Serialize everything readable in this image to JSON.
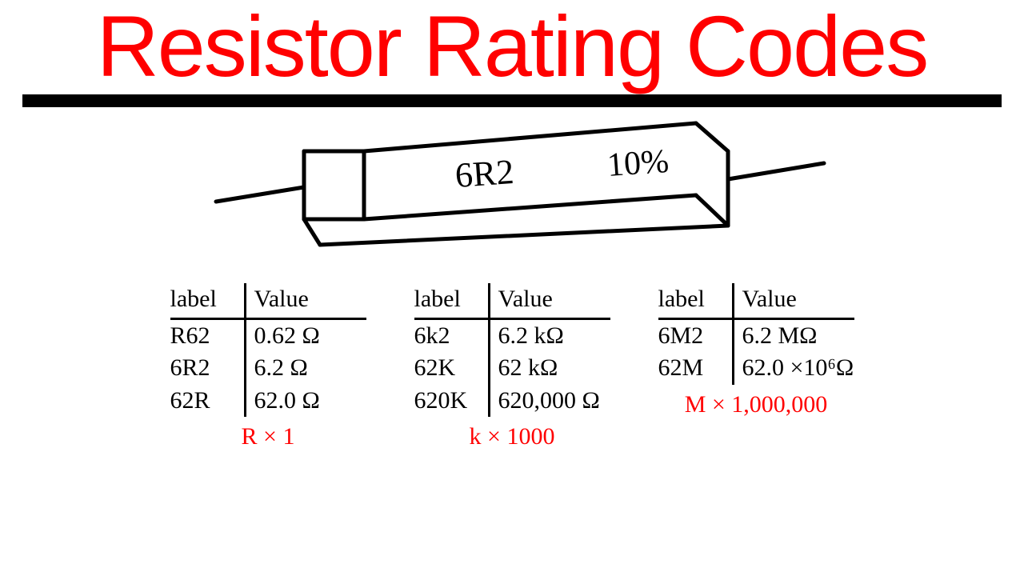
{
  "title": {
    "text": "Resistor Rating Codes",
    "color": "#ff0000",
    "fontsize": 108
  },
  "underline": {
    "color": "#000000",
    "thickness": 16
  },
  "resistor": {
    "label_code": "6R2",
    "label_tolerance": "10%",
    "stroke": "#000000",
    "stroke_width": 5,
    "label_fontsize": 44
  },
  "tables": [
    {
      "header_label": "label",
      "header_value": "Value",
      "rows": [
        {
          "label": "R62",
          "value": "0.62 Ω"
        },
        {
          "label": "6R2",
          "value": "6.2 Ω"
        },
        {
          "label": "62R",
          "value": "62.0 Ω"
        }
      ],
      "multiplier": "R × 1",
      "multiplier_color": "#ff0000"
    },
    {
      "header_label": "label",
      "header_value": "Value",
      "rows": [
        {
          "label": "6k2",
          "value": "6.2 kΩ"
        },
        {
          "label": "62K",
          "value": "62 kΩ"
        },
        {
          "label": "620K",
          "value": "620,000 Ω"
        }
      ],
      "multiplier": "k × 1000",
      "multiplier_color": "#ff0000"
    },
    {
      "header_label": "label",
      "header_value": "Value",
      "rows": [
        {
          "label": "6M2",
          "value": "6.2 MΩ"
        },
        {
          "label": "62M",
          "value": "62.0 ×10⁶Ω"
        }
      ],
      "multiplier": "M × 1,000,000",
      "multiplier_color": "#ff0000"
    }
  ],
  "style": {
    "body_font": "'Comic Sans MS', cursive",
    "table_fontsize": 30,
    "table_color": "#000000",
    "background": "#ffffff"
  }
}
